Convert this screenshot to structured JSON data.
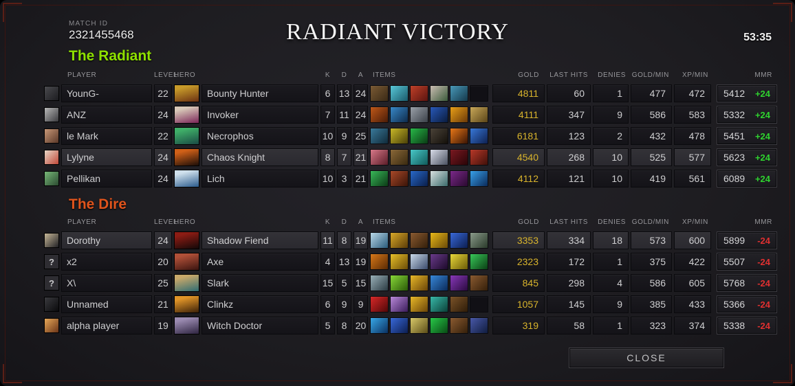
{
  "header": {
    "match_id_label": "MATCH ID",
    "match_id": "2321455468",
    "title": "RADIANT VICTORY",
    "duration": "53:35"
  },
  "columns": {
    "player": "PLAYER",
    "level": "LEVEL",
    "hero": "HERO",
    "k": "K",
    "d": "D",
    "a": "A",
    "items": "ITEMS",
    "gold": "GOLD",
    "last_hits": "LAST HITS",
    "denies": "DENIES",
    "gpm": "GOLD/MIN",
    "xpm": "XP/MIN",
    "mmr": "MMR"
  },
  "colors": {
    "radiant": "#8ee000",
    "dire": "#e0541c",
    "gold_text": "#d9b42c",
    "delta_up": "#2fd42f",
    "delta_down": "#e03030"
  },
  "teams": [
    {
      "name": "The Radiant",
      "color": "#8ee000",
      "players": [
        {
          "name": "YounG-",
          "level": "22",
          "hero": "Bounty Hunter",
          "hero_colors": [
            "#c79a2a",
            "#6a3012"
          ],
          "avatar": {
            "type": "image",
            "colors": [
              "#4a4a4e",
              "#1c1c20"
            ]
          },
          "k": "6",
          "d": "13",
          "a": "24",
          "items": [
            [
              "#7a5a34",
              "#3a2a16"
            ],
            [
              "#58c8d8",
              "#1a5a6a"
            ],
            [
              "#c04028",
              "#5a1410"
            ],
            [
              "#cabdb2",
              "#3a5a3a"
            ],
            [
              "#4898b8",
              "#14384a"
            ],
            null
          ],
          "gold": "4811",
          "last_hits": "60",
          "denies": "1",
          "gpm": "477",
          "xpm": "472",
          "mmr": "5412",
          "mmr_delta": "+24",
          "highlight": false
        },
        {
          "name": "ANZ",
          "level": "24",
          "hero": "Invoker",
          "hero_colors": [
            "#d8c8b8",
            "#7a2558"
          ],
          "avatar": {
            "type": "image",
            "colors": [
              "#b8b8b8",
              "#3a3a3e"
            ]
          },
          "k": "7",
          "d": "11",
          "a": "24",
          "items": [
            [
              "#c05818",
              "#4a1c08"
            ],
            [
              "#3888c8",
              "#0e2a4a"
            ],
            [
              "#9aa0a8",
              "#3a4048"
            ],
            [
              "#2858b8",
              "#0a1c3e"
            ],
            [
              "#e8a018",
              "#6a3808"
            ],
            [
              "#c8a858",
              "#5a4418"
            ]
          ],
          "gold": "4111",
          "last_hits": "347",
          "denies": "9",
          "gpm": "586",
          "xpm": "583",
          "mmr": "5332",
          "mmr_delta": "+24",
          "highlight": false
        },
        {
          "name": "le Mark",
          "level": "22",
          "hero": "Necrophos",
          "hero_colors": [
            "#3fae68",
            "#1a4a44"
          ],
          "avatar": {
            "type": "image",
            "colors": [
              "#c89878",
              "#5a3828"
            ]
          },
          "k": "10",
          "d": "9",
          "a": "25",
          "items": [
            [
              "#3a7a9a",
              "#102a3a"
            ],
            [
              "#c8b828",
              "#4a4008"
            ],
            [
              "#28b848",
              "#0a3a14"
            ],
            [
              "#4a4238",
              "#14100a"
            ],
            [
              "#e87818",
              "#3a1404"
            ],
            [
              "#3878d8",
              "#0e2050"
            ]
          ],
          "gold": "6181",
          "last_hits": "123",
          "denies": "2",
          "gpm": "432",
          "xpm": "478",
          "mmr": "5451",
          "mmr_delta": "+24",
          "highlight": false
        },
        {
          "name": "Lylyne",
          "level": "24",
          "hero": "Chaos Knight",
          "hero_colors": [
            "#d06018",
            "#1a0d08"
          ],
          "avatar": {
            "type": "image",
            "colors": [
              "#e8d8c8",
              "#c04838"
            ]
          },
          "k": "8",
          "d": "7",
          "a": "21",
          "items": [
            [
              "#d87888",
              "#5a1c28"
            ],
            [
              "#8a6838",
              "#3a2a10"
            ],
            [
              "#48c8c8",
              "#105a5a"
            ],
            [
              "#d8dce8",
              "#4a5060"
            ],
            [
              "#7a1820",
              "#2a0508"
            ],
            [
              "#b83828",
              "#40100a"
            ]
          ],
          "gold": "4540",
          "last_hits": "268",
          "denies": "10",
          "gpm": "525",
          "xpm": "577",
          "mmr": "5623",
          "mmr_delta": "+24",
          "highlight": true
        },
        {
          "name": "Pellikan",
          "level": "24",
          "hero": "Lich",
          "hero_colors": [
            "#cfe0ec",
            "#2a5a8c"
          ],
          "avatar": {
            "type": "image",
            "colors": [
              "#78b878",
              "#2a4a30"
            ]
          },
          "k": "10",
          "d": "3",
          "a": "21",
          "items": [
            [
              "#38b858",
              "#0c3a16"
            ],
            [
              "#a84828",
              "#3a1408"
            ],
            [
              "#2868c8",
              "#0a1e4a"
            ],
            [
              "#d8e0e0",
              "#3a6a6a"
            ],
            [
              "#7a2888",
              "#2a0a30"
            ],
            [
              "#38a0e8",
              "#0a2a5a"
            ]
          ],
          "gold": "4112",
          "last_hits": "121",
          "denies": "10",
          "gpm": "419",
          "xpm": "561",
          "mmr": "6089",
          "mmr_delta": "+24",
          "highlight": false
        }
      ]
    },
    {
      "name": "The Dire",
      "color": "#e0541c",
      "players": [
        {
          "name": "Dorothy",
          "level": "24",
          "hero": "Shadow Fiend",
          "hero_colors": [
            "#8c1c14",
            "#120808"
          ],
          "avatar": {
            "type": "image",
            "colors": [
              "#c8b898",
              "#202024"
            ]
          },
          "k": "11",
          "d": "8",
          "a": "19",
          "items": [
            [
              "#b8d8e8",
              "#2a5a7a"
            ],
            [
              "#d8a828",
              "#5a3c08"
            ],
            [
              "#8a5a30",
              "#341f0a"
            ],
            [
              "#e8b818",
              "#6a4a08"
            ],
            [
              "#3868d8",
              "#0c1e50"
            ],
            [
              "#8a9a8a",
              "#2a3a2a"
            ]
          ],
          "gold": "3353",
          "last_hits": "334",
          "denies": "18",
          "gpm": "573",
          "xpm": "600",
          "mmr": "5899",
          "mmr_delta": "-24",
          "highlight": true
        },
        {
          "name": "x2",
          "level": "20",
          "hero": "Axe",
          "hero_colors": [
            "#b05038",
            "#3a1410"
          ],
          "avatar": {
            "type": "unknown",
            "glyph": "?"
          },
          "k": "4",
          "d": "13",
          "a": "19",
          "items": [
            [
              "#d87818",
              "#5a2a04"
            ],
            [
              "#e8c028",
              "#6a4c08"
            ],
            [
              "#c8d8e8",
              "#3a4a6a"
            ],
            [
              "#6a3a8a",
              "#1c0a2a"
            ],
            [
              "#e8d838",
              "#6a5a08"
            ],
            [
              "#38c858",
              "#0a3e14"
            ]
          ],
          "gold": "2323",
          "last_hits": "172",
          "denies": "1",
          "gpm": "375",
          "xpm": "422",
          "mmr": "5507",
          "mmr_delta": "-24",
          "highlight": false
        },
        {
          "name": "X\\",
          "level": "25",
          "hero": "Slark",
          "hero_colors": [
            "#c8a86a",
            "#2d6b72"
          ],
          "avatar": {
            "type": "unknown",
            "glyph": "?"
          },
          "k": "15",
          "d": "5",
          "a": "15",
          "items": [
            [
              "#9ab0b8",
              "#2a3a42"
            ],
            [
              "#88d838",
              "#2a5a08"
            ],
            [
              "#e8b828",
              "#6a4408"
            ],
            [
              "#3888d8",
              "#0a2a5a"
            ],
            [
              "#8838b8",
              "#2a0a40"
            ],
            [
              "#8a5a30",
              "#341f0a"
            ]
          ],
          "gold": "845",
          "last_hits": "298",
          "denies": "4",
          "gpm": "586",
          "xpm": "605",
          "mmr": "5768",
          "mmr_delta": "-24",
          "highlight": false
        },
        {
          "name": "Unnamed",
          "level": "21",
          "hero": "Clinkz",
          "hero_colors": [
            "#e09428",
            "#3a2008"
          ],
          "avatar": {
            "type": "image",
            "colors": [
              "#3a3a3e",
              "#0a0a0c"
            ]
          },
          "k": "6",
          "d": "9",
          "a": "9",
          "items": [
            [
              "#d82828",
              "#500808"
            ],
            [
              "#b888d8",
              "#3a1c5a"
            ],
            [
              "#e8b828",
              "#6a4408"
            ],
            [
              "#38b8a8",
              "#0a4038"
            ],
            [
              "#7a5228",
              "#2e1c08"
            ],
            null
          ],
          "gold": "1057",
          "last_hits": "145",
          "denies": "9",
          "gpm": "385",
          "xpm": "433",
          "mmr": "5366",
          "mmr_delta": "-24",
          "highlight": false
        },
        {
          "name": "alpha player",
          "level": "19",
          "hero": "Witch Doctor",
          "hero_colors": [
            "#9a8ab0",
            "#2e2440"
          ],
          "avatar": {
            "type": "image",
            "colors": [
              "#e8a858",
              "#6a3418"
            ]
          },
          "k": "5",
          "d": "8",
          "a": "20",
          "items": [
            [
              "#38a8e8",
              "#0a3060"
            ],
            [
              "#3868d8",
              "#0c1e50"
            ],
            [
              "#d8c868",
              "#5a4c18"
            ],
            [
              "#28c848",
              "#084a14"
            ],
            [
              "#8a5a30",
              "#341f0a"
            ],
            [
              "#4858a8",
              "#101c3e"
            ]
          ],
          "gold": "319",
          "last_hits": "58",
          "denies": "1",
          "gpm": "323",
          "xpm": "374",
          "mmr": "5338",
          "mmr_delta": "-24",
          "highlight": false
        }
      ]
    }
  ],
  "close_label": "CLOSE"
}
